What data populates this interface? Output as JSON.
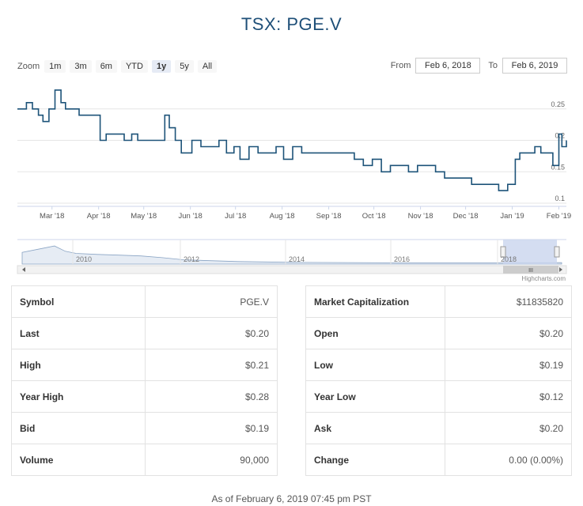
{
  "title": "TSX: PGE.V",
  "zoom": {
    "label": "Zoom",
    "buttons": [
      "1m",
      "3m",
      "6m",
      "YTD",
      "1y",
      "5y",
      "All"
    ],
    "active": "1y"
  },
  "range": {
    "from_label": "From",
    "from_value": "Feb 6, 2018",
    "to_label": "To",
    "to_value": "Feb 6, 2019"
  },
  "chart_data": {
    "type": "line",
    "x": [
      "2018-02-06",
      "2018-02-12",
      "2018-02-16",
      "2018-02-20",
      "2018-02-23",
      "2018-02-27",
      "2018-03-03",
      "2018-03-07",
      "2018-03-10",
      "2018-03-14",
      "2018-03-19",
      "2018-03-26",
      "2018-04-02",
      "2018-04-06",
      "2018-04-12",
      "2018-04-18",
      "2018-04-23",
      "2018-04-27",
      "2018-05-02",
      "2018-05-08",
      "2018-05-15",
      "2018-05-18",
      "2018-05-22",
      "2018-05-26",
      "2018-05-30",
      "2018-06-02",
      "2018-06-08",
      "2018-06-15",
      "2018-06-20",
      "2018-06-25",
      "2018-06-30",
      "2018-07-04",
      "2018-07-10",
      "2018-07-16",
      "2018-07-22",
      "2018-07-28",
      "2018-08-02",
      "2018-08-08",
      "2018-08-14",
      "2018-08-20",
      "2018-08-25",
      "2018-08-30",
      "2018-09-05",
      "2018-09-12",
      "2018-09-18",
      "2018-09-24",
      "2018-09-30",
      "2018-10-06",
      "2018-10-12",
      "2018-10-18",
      "2018-10-24",
      "2018-10-30",
      "2018-11-05",
      "2018-11-11",
      "2018-11-17",
      "2018-11-23",
      "2018-11-29",
      "2018-12-05",
      "2018-12-11",
      "2018-12-17",
      "2018-12-23",
      "2018-12-29",
      "2019-01-03",
      "2019-01-06",
      "2019-01-10",
      "2019-01-16",
      "2019-01-20",
      "2019-01-24",
      "2019-01-28",
      "2019-02-01",
      "2019-02-03",
      "2019-02-06"
    ],
    "y": [
      0.25,
      0.26,
      0.25,
      0.24,
      0.23,
      0.25,
      0.28,
      0.26,
      0.25,
      0.25,
      0.24,
      0.24,
      0.2,
      0.21,
      0.21,
      0.2,
      0.21,
      0.2,
      0.2,
      0.2,
      0.24,
      0.22,
      0.2,
      0.18,
      0.18,
      0.2,
      0.19,
      0.19,
      0.2,
      0.18,
      0.19,
      0.17,
      0.19,
      0.18,
      0.18,
      0.19,
      0.17,
      0.19,
      0.18,
      0.18,
      0.18,
      0.18,
      0.18,
      0.18,
      0.17,
      0.16,
      0.17,
      0.15,
      0.16,
      0.16,
      0.15,
      0.16,
      0.16,
      0.15,
      0.14,
      0.14,
      0.14,
      0.13,
      0.13,
      0.13,
      0.12,
      0.13,
      0.17,
      0.18,
      0.18,
      0.19,
      0.18,
      0.18,
      0.16,
      0.21,
      0.19,
      0.2
    ],
    "x_ticks": [
      "Mar '18",
      "Apr '18",
      "May '18",
      "Jun '18",
      "Jul '18",
      "Aug '18",
      "Sep '18",
      "Oct '18",
      "Nov '18",
      "Dec '18",
      "Jan '19",
      "Feb '19"
    ],
    "x_tick_dates": [
      "2018-03-01",
      "2018-04-01",
      "2018-05-01",
      "2018-06-01",
      "2018-07-01",
      "2018-08-01",
      "2018-09-01",
      "2018-10-01",
      "2018-11-01",
      "2018-12-01",
      "2019-01-01",
      "2019-02-01"
    ],
    "y_ticks": [
      0.1,
      0.15,
      0.2,
      0.25
    ],
    "y_tick_labels": [
      "0.1",
      "0.15",
      "0.2",
      "0.25"
    ],
    "ylim": [
      0.095,
      0.29
    ],
    "line_color": "#1d5379",
    "grid": true
  },
  "navigator": {
    "years": [
      "2010",
      "2012",
      "2014",
      "2016",
      "2018"
    ],
    "scroll_grip": "III"
  },
  "credits": "Highcharts.com",
  "stats": {
    "left": [
      {
        "label": "Symbol",
        "value": "PGE.V"
      },
      {
        "label": "Last",
        "value": "$0.20"
      },
      {
        "label": "High",
        "value": "$0.21"
      },
      {
        "label": "Year High",
        "value": "$0.28"
      },
      {
        "label": "Bid",
        "value": "$0.19"
      },
      {
        "label": "Volume",
        "value": "90,000"
      }
    ],
    "right": [
      {
        "label": "Market Capitalization",
        "value": "$11835820"
      },
      {
        "label": "Open",
        "value": "$0.20"
      },
      {
        "label": "Low",
        "value": "$0.19"
      },
      {
        "label": "Year Low",
        "value": "$0.12"
      },
      {
        "label": "Ask",
        "value": "$0.20"
      },
      {
        "label": "Change",
        "value": "0.00 (0.00%)"
      }
    ]
  },
  "footer": "As of February 6, 2019 07:45 pm PST"
}
